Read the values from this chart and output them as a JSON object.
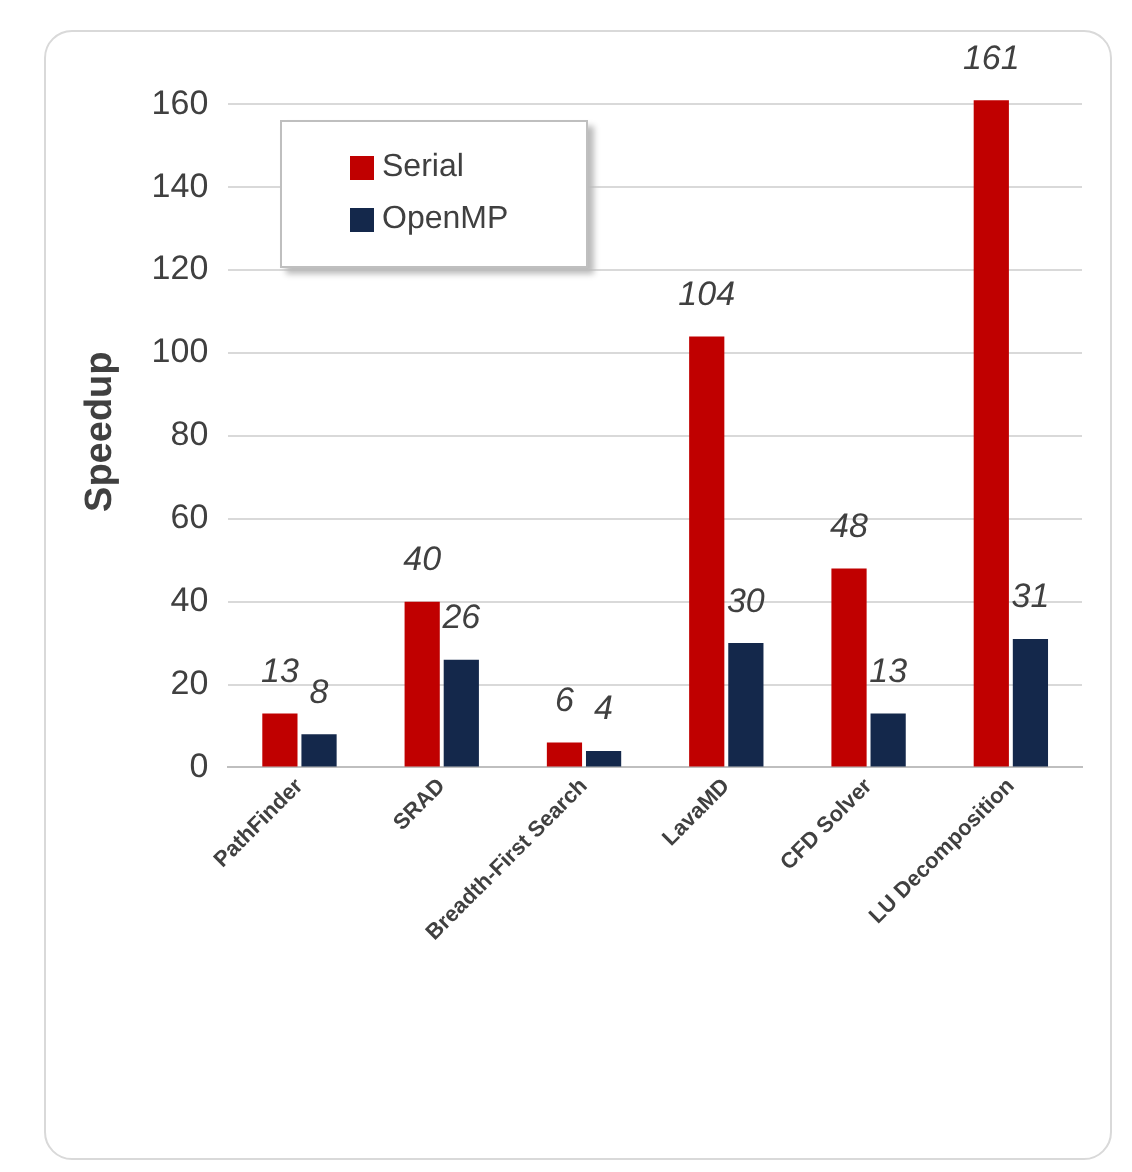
{
  "chart_data": {
    "type": "bar",
    "ylabel": "Speedup",
    "categories": [
      "PathFinder",
      "SRAD",
      "Breadth-First Search",
      "LavaMD",
      "CFD Solver",
      "LU Decomposition"
    ],
    "series": [
      {
        "name": "Serial",
        "color": "#c00000",
        "values": [
          13,
          40,
          6,
          104,
          48,
          161
        ]
      },
      {
        "name": "OpenMP",
        "color": "#14284b",
        "values": [
          8,
          26,
          4,
          30,
          13,
          31
        ]
      }
    ],
    "ylim": [
      0,
      162
    ],
    "yticks": [
      0,
      20,
      40,
      60,
      80,
      100,
      120,
      140,
      160
    ],
    "grid": "y",
    "legend": "top left",
    "data_labels": true
  }
}
